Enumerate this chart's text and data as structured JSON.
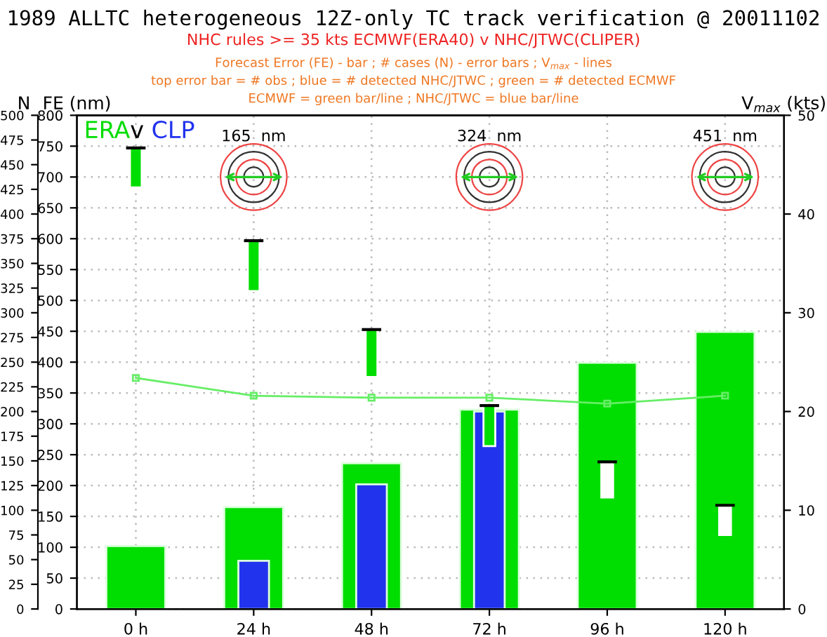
{
  "chart_data": {
    "type": "bar",
    "title": "1989 ALLTC heterogeneous 12Z-only TC track verification @ 20011102",
    "subtitle": "NHC rules >= 35 kts ECMWF(ERA40) v NHC/JTWC(CLIPER)",
    "annotations": [
      "Forecast Error (FE) - bar ; # cases (N) - error bars ; V$_{max}$ - lines",
      "top error bar = # obs ; blue = # detected NHC/JTWC ; green = # detected ECMWF",
      "ECMWF = green bar/line ; NHC/JTWC = blue bar/line",
      "165  nm",
      "324  nm",
      "451  nm"
    ],
    "categories": [
      "0 h",
      "24 h",
      "48 h",
      "72 h",
      "96 h",
      "120 h"
    ],
    "ylabel": "FE (nm)",
    "ylim": [
      0,
      800
    ],
    "yticks": [
      0,
      50,
      100,
      150,
      200,
      250,
      300,
      350,
      400,
      450,
      500,
      550,
      600,
      650,
      700,
      750,
      800
    ],
    "y2label": "V$_{max}$ (kts)",
    "y2lim": [
      0,
      50
    ],
    "y2ticks": [
      0,
      10,
      20,
      30,
      40,
      50
    ],
    "y3label": "N",
    "y3lim": [
      0,
      500
    ],
    "y3ticks": [
      0,
      25,
      50,
      75,
      100,
      125,
      150,
      175,
      200,
      225,
      250,
      275,
      300,
      325,
      350,
      375,
      400,
      425,
      450,
      475,
      500
    ],
    "legend_title": "v",
    "legend": "top left",
    "grid": true,
    "series": [
      {
        "name": "ERA",
        "color": "#00dd00",
        "values": [
          102,
          165,
          236,
          323,
          399,
          449
        ]
      },
      {
        "name": "CLP",
        "color": "#2233ee",
        "values": [
          null,
          78,
          202,
          320,
          null,
          null
        ]
      },
      {
        "axis": "y3",
        "colors": [
          "#00dd00",
          "#00dd00",
          "#00dd00",
          "#00dd00",
          "#ffffff",
          "#ffffff"
        ],
        "base": [
          427,
          322,
          235,
          165,
          113,
          75
        ],
        "values": [
          40,
          51,
          48,
          41,
          36,
          30
        ]
      },
      {
        "type": "line",
        "axis": "y2",
        "color": "#66ee66",
        "marker": "square",
        "values": [
          23.4,
          21.6,
          21.4,
          21.4,
          20.8,
          21.6
        ]
      }
    ]
  }
}
